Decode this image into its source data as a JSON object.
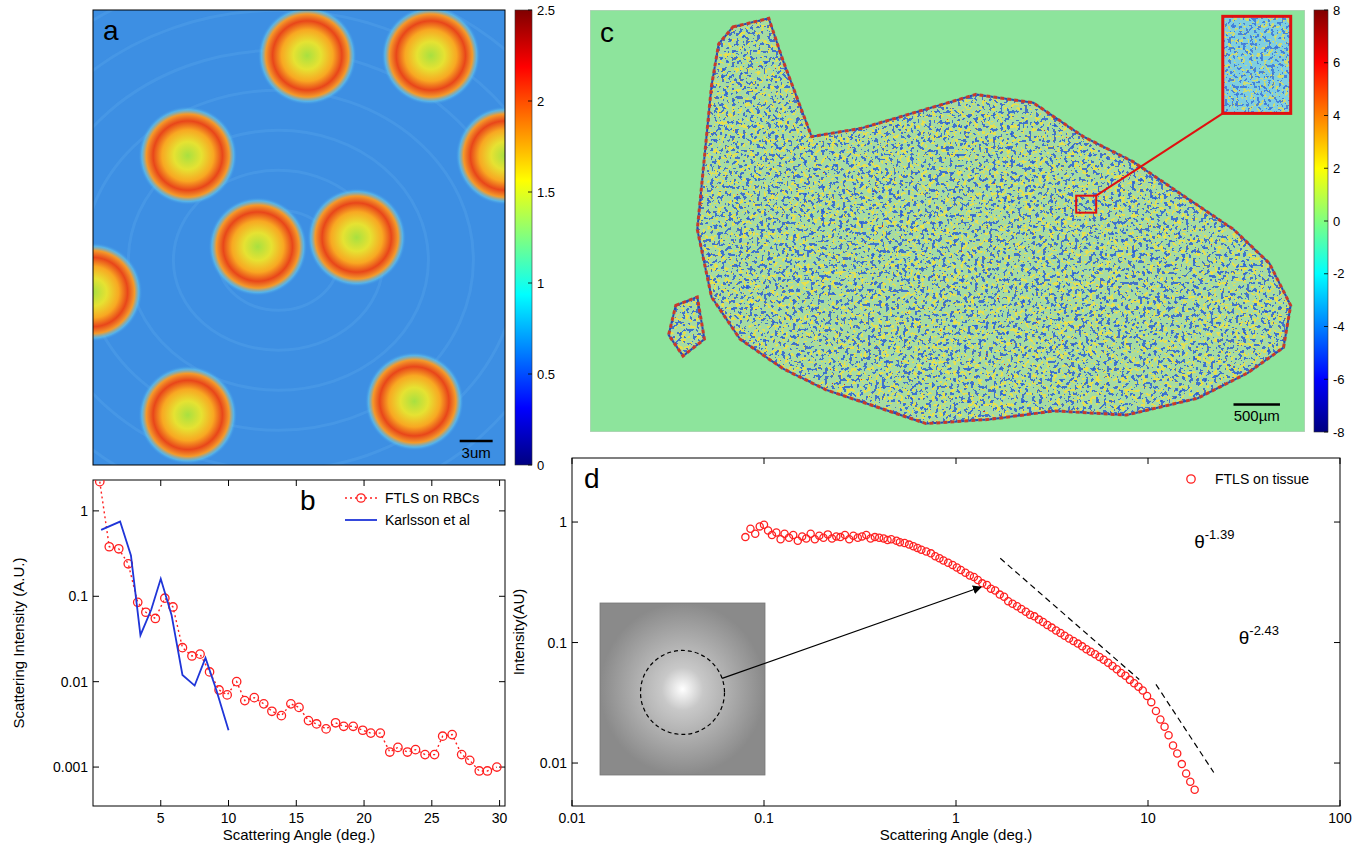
{
  "chart_data": [
    {
      "type": "image",
      "panel": "a",
      "tick_labels": false,
      "scale_bar": "3um",
      "colorbar_lim": [
        0,
        2.5
      ],
      "colorbar_ticks": [
        0,
        0.5,
        1,
        1.5,
        2,
        2.5
      ]
    },
    {
      "type": "line",
      "panel": "b",
      "log": "y",
      "legend": "upper right",
      "x_label": "Scattering Angle (deg.)",
      "y_label": "Scattering Intensity (A.U.)",
      "xlim": [
        0,
        30.4
      ],
      "ylim": [
        0.00035,
        2.3
      ],
      "xticks": [
        5,
        10,
        15,
        20,
        25,
        30
      ],
      "yticks": [
        0.001,
        0.01,
        0.1,
        1
      ],
      "series": [
        {
          "name": "FTLS on RBCs",
          "color": "#ff2020",
          "marker": "circle",
          "line_style": "dotted",
          "x": [
            0.5,
            1.2,
            1.9,
            2.6,
            3.3,
            3.9,
            4.6,
            5.3,
            5.9,
            6.6,
            7.3,
            7.9,
            8.6,
            9.3,
            9.9,
            10.6,
            11.2,
            11.9,
            12.6,
            13.2,
            13.9,
            14.6,
            15.2,
            15.9,
            16.5,
            17.2,
            17.9,
            18.5,
            19.2,
            19.9,
            20.5,
            21.2,
            21.9,
            22.5,
            23.2,
            23.8,
            24.5,
            25.2,
            25.8,
            26.5,
            27.2,
            27.8,
            28.5,
            29.1,
            29.8
          ],
          "values": [
            2.2,
            0.38,
            0.36,
            0.24,
            0.085,
            0.065,
            0.055,
            0.095,
            0.075,
            0.025,
            0.02,
            0.021,
            0.013,
            0.008,
            0.007,
            0.01,
            0.006,
            0.0065,
            0.0055,
            0.0045,
            0.004,
            0.0055,
            0.005,
            0.0035,
            0.0032,
            0.0028,
            0.0033,
            0.003,
            0.003,
            0.0027,
            0.0025,
            0.0025,
            0.0015,
            0.0017,
            0.0015,
            0.0016,
            0.0014,
            0.0014,
            0.0023,
            0.0024,
            0.0014,
            0.0012,
            0.0009,
            0.0009,
            0.001
          ]
        },
        {
          "name": "Karlsson et al",
          "color": "#1f35d8",
          "marker": "none",
          "line_style": "solid",
          "x": [
            0.6,
            2.0,
            2.8,
            3.5,
            4.3,
            5.0,
            5.8,
            6.6,
            7.5,
            8.3,
            9.1,
            10.0
          ],
          "values": [
            0.6,
            0.75,
            0.3,
            0.035,
            0.07,
            0.16,
            0.06,
            0.012,
            0.009,
            0.019,
            0.008,
            0.0027
          ]
        }
      ]
    },
    {
      "type": "image",
      "panel": "c",
      "tick_labels": false,
      "scale_bar": "500µm",
      "colorbar_lim": [
        -8,
        8
      ],
      "colorbar_ticks": [
        -8,
        -6,
        -4,
        -2,
        0,
        2,
        4,
        6,
        8
      ]
    },
    {
      "type": "scatter",
      "panel": "d",
      "log": true,
      "legend": "upper right",
      "x_label": "Scattering Angle (deg.)",
      "y_label": "Intensity(AU)",
      "xlim": [
        0.01,
        100
      ],
      "ylim": [
        0.0044,
        3.4
      ],
      "xticks": [
        0.01,
        0.1,
        1,
        10,
        100
      ],
      "yticks": [
        0.01,
        0.1,
        1
      ],
      "series": [
        {
          "name": "FTLS on tissue",
          "color": "#ff2020",
          "marker": "circle",
          "x": [
            0.08,
            0.085,
            0.09,
            0.095,
            0.1,
            0.105,
            0.11,
            0.116,
            0.122,
            0.128,
            0.135,
            0.142,
            0.15,
            0.158,
            0.166,
            0.175,
            0.184,
            0.194,
            0.204,
            0.215,
            0.226,
            0.238,
            0.25,
            0.264,
            0.278,
            0.292,
            0.308,
            0.324,
            0.341,
            0.359,
            0.378,
            0.398,
            0.42,
            0.44,
            0.46,
            0.49,
            0.51,
            0.54,
            0.57,
            0.6,
            0.63,
            0.66,
            0.7,
            0.74,
            0.78,
            0.82,
            0.86,
            0.91,
            0.96,
            1.01,
            1.06,
            1.12,
            1.18,
            1.24,
            1.3,
            1.37,
            1.45,
            1.52,
            1.6,
            1.69,
            1.78,
            1.87,
            1.97,
            2.08,
            2.19,
            2.31,
            2.43,
            2.56,
            2.7,
            2.84,
            2.99,
            3.15,
            3.32,
            3.5,
            3.68,
            3.88,
            4.09,
            4.31,
            4.54,
            4.78,
            5.03,
            5.3,
            5.59,
            5.88,
            6.2,
            6.53,
            6.88,
            7.24,
            7.63,
            8.04,
            8.47,
            8.92,
            9.39,
            9.89,
            10.4,
            11,
            11.6,
            12.2,
            12.8,
            13.5,
            14.2,
            15,
            15.8,
            16.6,
            17.5
          ],
          "values": [
            0.75,
            0.88,
            0.8,
            0.92,
            0.95,
            0.85,
            0.78,
            0.82,
            0.72,
            0.8,
            0.74,
            0.78,
            0.7,
            0.76,
            0.73,
            0.8,
            0.72,
            0.77,
            0.74,
            0.79,
            0.73,
            0.76,
            0.75,
            0.78,
            0.72,
            0.77,
            0.74,
            0.76,
            0.78,
            0.73,
            0.75,
            0.74,
            0.73,
            0.71,
            0.72,
            0.7,
            0.68,
            0.67,
            0.65,
            0.63,
            0.61,
            0.59,
            0.57,
            0.55,
            0.52,
            0.5,
            0.48,
            0.46,
            0.44,
            0.42,
            0.4,
            0.38,
            0.36,
            0.35,
            0.33,
            0.31,
            0.3,
            0.28,
            0.27,
            0.25,
            0.24,
            0.22,
            0.21,
            0.2,
            0.19,
            0.18,
            0.17,
            0.165,
            0.155,
            0.148,
            0.14,
            0.133,
            0.126,
            0.12,
            0.114,
            0.108,
            0.103,
            0.098,
            0.093,
            0.088,
            0.084,
            0.08,
            0.076,
            0.072,
            0.068,
            0.064,
            0.06,
            0.056,
            0.053,
            0.049,
            0.046,
            0.043,
            0.04,
            0.036,
            0.032,
            0.027,
            0.023,
            0.02,
            0.017,
            0.014,
            0.012,
            0.0098,
            0.0082,
            0.007,
            0.006
          ]
        }
      ],
      "annotations": [
        {
          "text": "θ",
          "exponent": -1.39,
          "x": [
            1.7,
            9
          ],
          "y0": 0.5
        },
        {
          "text": "θ",
          "exponent": -2.43,
          "x": [
            11,
            22
          ],
          "y0": 0.045
        }
      ]
    }
  ]
}
